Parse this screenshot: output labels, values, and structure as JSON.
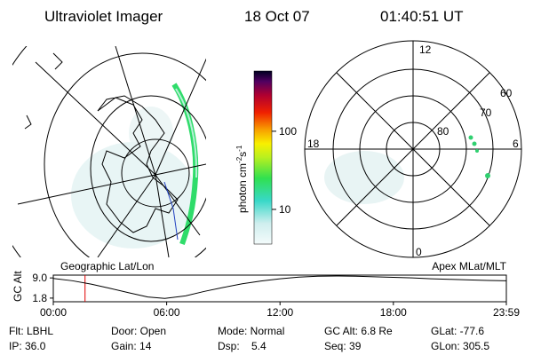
{
  "header": {
    "instrument": "Ultraviolet Imager",
    "date": "18 Oct 07",
    "time": "01:40:51 UT"
  },
  "colorbar": {
    "label": "photon cm",
    "exp1": "-2",
    "unit2": "s",
    "exp2": "-1",
    "log": true,
    "ylim": [
      3.6,
      590
    ],
    "yticks": [
      10,
      100
    ]
  },
  "polar_plot": {
    "mlt_labels": [
      "12",
      "18",
      "6",
      "0"
    ],
    "mlat_labels": [
      "80",
      "70",
      "60"
    ]
  },
  "panel_labels": {
    "left": "Geographic Lat/Lon",
    "right": "Apex MLat/MLT"
  },
  "altitude_plot": {
    "ylabel": "GC Alt",
    "yticks": [
      {
        "value": 9.0,
        "label": "9.0"
      },
      {
        "value": 1.8,
        "label": "1.8"
      }
    ],
    "ylim": [
      0.5,
      10.0
    ],
    "xlim": [
      0,
      23.98
    ],
    "xticks": [
      {
        "value": 0,
        "label": "00:00"
      },
      {
        "value": 6,
        "label": "06:00"
      },
      {
        "value": 12,
        "label": "12:00"
      },
      {
        "value": 18,
        "label": "18:00"
      },
      {
        "value": 23.98,
        "label": "23:59"
      }
    ],
    "x": [
      0,
      1,
      2,
      3,
      4,
      5,
      5.9,
      7,
      8,
      9,
      10,
      11,
      12,
      13,
      14,
      15,
      16,
      17,
      18,
      19,
      20,
      21,
      22,
      23,
      23.98
    ],
    "values": [
      8.8,
      8.0,
      6.8,
      5.3,
      3.7,
      2.2,
      1.7,
      2.6,
      4.2,
      5.6,
      6.9,
      7.9,
      8.7,
      9.3,
      9.6,
      9.7,
      9.6,
      9.4,
      9.2,
      9.0,
      8.7,
      8.5,
      8.3,
      8.1,
      8.0
    ],
    "current_time": 1.68,
    "current_color": "#e00000"
  },
  "footer": [
    [
      "Flt: LBHL",
      "Door: Open",
      "Mode: Normal",
      "GC Alt: 6.8 Re",
      "GLat: -77.6"
    ],
    [
      "IP: 36.0",
      "Gain: 14",
      "Dsp:    5.4",
      "Seq: 39",
      "GLon: 305.5"
    ]
  ]
}
